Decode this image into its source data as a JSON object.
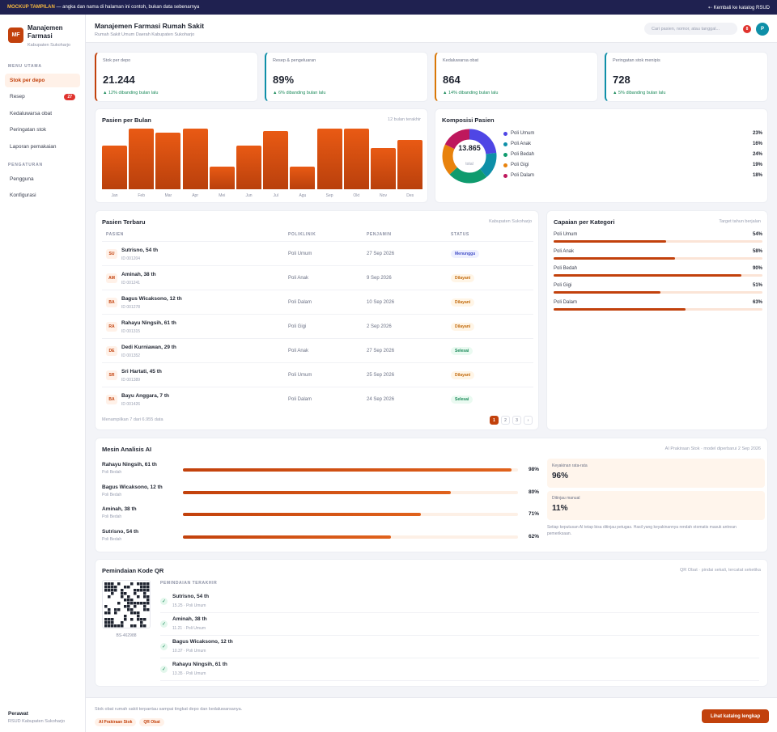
{
  "topbar": {
    "tag": "MOCKUP TAMPILAN",
    "text": " — angka dan nama di halaman ini contoh, bukan data sebenarnya",
    "back": "⇠ Kembali ke katalog RSUD"
  },
  "brand": {
    "initials": "MF",
    "title": "Manajemen Farmasi",
    "subtitle": "Kabupaten Sukoharjo"
  },
  "sidebar": {
    "section_main": "MENU UTAMA",
    "section_settings": "PENGATURAN",
    "items": [
      {
        "label": "Stok per depo"
      },
      {
        "label": "Resep",
        "badge": "27"
      },
      {
        "label": "Kedaluwarsa obat"
      },
      {
        "label": "Peringatan stok"
      },
      {
        "label": "Laporan pemakaian"
      }
    ],
    "settings": [
      {
        "label": "Pengguna"
      },
      {
        "label": "Konfigurasi"
      }
    ],
    "user_name": "Perawat",
    "user_place": "RSUD Kabupaten Sukoharjo"
  },
  "header": {
    "title": "Manajemen Farmasi Rumah Sakit",
    "subtitle": "Rumah Sakit Umum Daerah Kabupaten Sukoharjo",
    "search_placeholder": "Cari pasien, nomor, atau tanggal...",
    "notif_count": "8",
    "avatar": "P"
  },
  "stats": [
    {
      "label": "Stok per depo",
      "value": "21.244",
      "delta": "▲ 12% dibanding bulan lalu",
      "color": "#c2410c"
    },
    {
      "label": "Resep & pengeluaran",
      "value": "89%",
      "delta": "▲ 6% dibanding bulan lalu",
      "color": "#0e8fa8"
    },
    {
      "label": "Kedaluwarsa obat",
      "value": "864",
      "delta": "▲ 14% dibanding bulan lalu",
      "color": "#d97706"
    },
    {
      "label": "Peringatan stok menipis",
      "value": "728",
      "delta": "▲ 5% dibanding bulan lalu",
      "color": "#0e8fa8"
    }
  ],
  "monthly": {
    "title": "Pasien per Bulan",
    "note": "12 bulan terakhir"
  },
  "chart_data": {
    "type": "bar",
    "categories": [
      "Jan",
      "Feb",
      "Mar",
      "Apr",
      "Mei",
      "Jun",
      "Jul",
      "Agu",
      "Sep",
      "Okt",
      "Nov",
      "Des"
    ],
    "values": [
      72,
      100,
      94,
      100,
      38,
      72,
      96,
      38,
      100,
      100,
      68,
      82
    ],
    "ylim": [
      0,
      100
    ],
    "color": "#e95a14"
  },
  "composition": {
    "title": "Komposisi Pasien",
    "total": "13.865",
    "total_label": "total",
    "items": [
      {
        "label": "Poli Umum",
        "pct": "23%",
        "value": 23,
        "color": "#4f46e5"
      },
      {
        "label": "Poli Anak",
        "pct": "16%",
        "value": 16,
        "color": "#0e8fa8"
      },
      {
        "label": "Poli Bedah",
        "pct": "24%",
        "value": 24,
        "color": "#0f9b6e"
      },
      {
        "label": "Poli Gigi",
        "pct": "19%",
        "value": 19,
        "color": "#e8820c"
      },
      {
        "label": "Poli Dalam",
        "pct": "18%",
        "value": 18,
        "color": "#be185d"
      }
    ]
  },
  "patients": {
    "title": "Pasien Terbaru",
    "note": "Kabupaten Sukoharjo",
    "cols": [
      "PASIEN",
      "POLIKLINIK",
      "PENJAMIN",
      "STATUS"
    ],
    "rows": [
      {
        "ini": "SU",
        "name": "Sutrisno, 54 th",
        "id": "ID 001204",
        "poli": "Poli Umum",
        "date": "27 Sep 2026",
        "status": "Menunggu",
        "type": "wait"
      },
      {
        "ini": "AM",
        "name": "Aminah, 38 th",
        "id": "ID 001241",
        "poli": "Poli Anak",
        "date": "9 Sep 2026",
        "status": "Dilayani",
        "type": "serve"
      },
      {
        "ini": "BA",
        "name": "Bagus Wicaksono, 12 th",
        "id": "ID 001278",
        "poli": "Poli Dalam",
        "date": "10 Sep 2026",
        "status": "Dilayani",
        "type": "serve"
      },
      {
        "ini": "RA",
        "name": "Rahayu Ningsih, 61 th",
        "id": "ID 001315",
        "poli": "Poli Gigi",
        "date": "2 Sep 2026",
        "status": "Dilayani",
        "type": "serve"
      },
      {
        "ini": "DE",
        "name": "Dedi Kurniawan, 29 th",
        "id": "ID 001352",
        "poli": "Poli Anak",
        "date": "27 Sep 2026",
        "status": "Selesai",
        "type": "done"
      },
      {
        "ini": "SR",
        "name": "Sri Hartati, 45 th",
        "id": "ID 001389",
        "poli": "Poli Umum",
        "date": "25 Sep 2026",
        "status": "Dilayani",
        "type": "serve"
      },
      {
        "ini": "BA",
        "name": "Bayu Anggara, 7 th",
        "id": "ID 001426",
        "poli": "Poli Dalam",
        "date": "24 Sep 2026",
        "status": "Selesai",
        "type": "done"
      }
    ],
    "footer": "Menampilkan 7 dari 6.955 data",
    "pages": [
      "1",
      "2",
      "3",
      "›"
    ]
  },
  "achievement": {
    "title": "Capaian per Kategori",
    "note": "Target tahun berjalan",
    "items": [
      {
        "label": "Poli Umum",
        "pct": "54%",
        "value": 54
      },
      {
        "label": "Poli Anak",
        "pct": "58%",
        "value": 58
      },
      {
        "label": "Poli Bedah",
        "pct": "90%",
        "value": 90
      },
      {
        "label": "Poli Gigi",
        "pct": "51%",
        "value": 51
      },
      {
        "label": "Poli Dalam",
        "pct": "63%",
        "value": 63
      }
    ]
  },
  "ai": {
    "title": "Mesin Analisis AI",
    "note": "AI Prakiraan Stok · model diperbarui 2 Sep 2026",
    "items": [
      {
        "name": "Rahayu Ningsih, 61 th",
        "sub": "Poli Bedah",
        "pct": "98%",
        "value": 98
      },
      {
        "name": "Bagus Wicaksono, 12 th",
        "sub": "Poli Bedah",
        "pct": "80%",
        "value": 80
      },
      {
        "name": "Aminah, 38 th",
        "sub": "Poli Bedah",
        "pct": "71%",
        "value": 71
      },
      {
        "name": "Sutrisno, 54 th",
        "sub": "Poli Bedah",
        "pct": "62%",
        "value": 62
      }
    ],
    "conf_label": "Keyakinan rata-rata",
    "conf_value": "96%",
    "rev_label": "Ditinjau manual",
    "rev_value": "11%",
    "disclaimer": "Setiap keputusan AI tetap bisa ditinjau petugas. Hasil yang keyakinannya rendah otomatis masuk antrean pemeriksaan."
  },
  "qr": {
    "title": "Pemindaian Kode QR",
    "note": "QR Obat · pindai sekali, tercatat seketika",
    "code": "BS-462988",
    "recent_label": "PEMINDAIAN TERAKHIR",
    "items": [
      {
        "name": "Sutrisno, 54 th",
        "sub": "15.25 · Poli Umum"
      },
      {
        "name": "Aminah, 38 th",
        "sub": "11.21 · Poli Umum"
      },
      {
        "name": "Bagus Wicaksono, 12 th",
        "sub": "10.37 · Poli Umum"
      },
      {
        "name": "Rahayu Ningsih, 61 th",
        "sub": "13.35 · Poli Umum"
      }
    ]
  },
  "footer": {
    "text": "Stok obat rumah sakit terpantau sampai tingkat depo dan kedaluwarsanya.",
    "chips": [
      "AI Prakiraan Stok",
      "QR Obat"
    ],
    "cta": "Lihat katalog lengkap"
  }
}
